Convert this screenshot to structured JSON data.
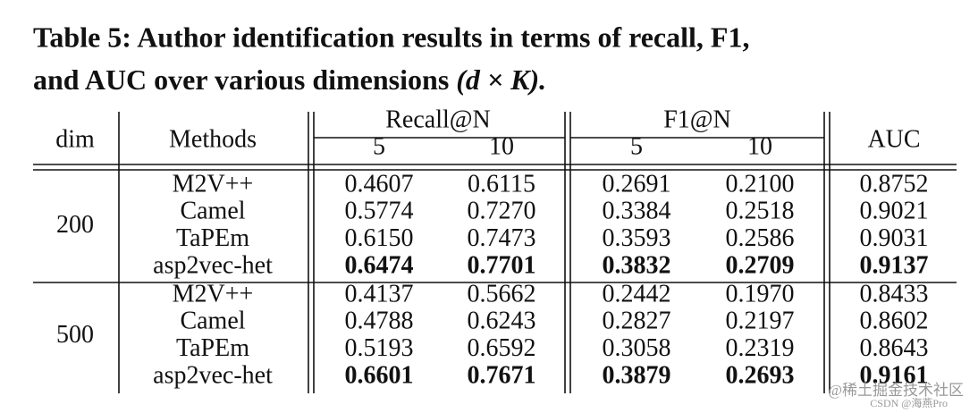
{
  "title": "Table 5: Author identification results in terms of recall, F1,",
  "title_line2": "and AUC over various dimensions",
  "title_math": "(d × K).",
  "table": {
    "header": {
      "dim": "dim",
      "methods": "Methods",
      "recall": "Recall@N",
      "recall_n": [
        "5",
        "10"
      ],
      "f1": "F1@N",
      "f1_n": [
        "5",
        "10"
      ],
      "auc": "AUC"
    },
    "groups": [
      {
        "dim": "200",
        "rows": [
          {
            "method": "M2V++",
            "values": [
              "0.4607",
              "0.6115",
              "0.2691",
              "0.2100",
              "0.8752"
            ],
            "bold": false
          },
          {
            "method": "Camel",
            "values": [
              "0.5774",
              "0.7270",
              "0.3384",
              "0.2518",
              "0.9021"
            ],
            "bold": false
          },
          {
            "method": "TaPEm",
            "values": [
              "0.6150",
              "0.7473",
              "0.3593",
              "0.2586",
              "0.9031"
            ],
            "bold": false
          },
          {
            "method": "asp2vec-het",
            "values": [
              "0.6474",
              "0.7701",
              "0.3832",
              "0.2709",
              "0.9137"
            ],
            "bold": true
          }
        ]
      },
      {
        "dim": "500",
        "rows": [
          {
            "method": "M2V++",
            "values": [
              "0.4137",
              "0.5662",
              "0.2442",
              "0.1970",
              "0.8433"
            ],
            "bold": false
          },
          {
            "method": "Camel",
            "values": [
              "0.4788",
              "0.6243",
              "0.2827",
              "0.2197",
              "0.8602"
            ],
            "bold": false
          },
          {
            "method": "TaPEm",
            "values": [
              "0.5193",
              "0.6592",
              "0.3058",
              "0.2319",
              "0.8643"
            ],
            "bold": false
          },
          {
            "method": "asp2vec-het",
            "values": [
              "0.6601",
              "0.7671",
              "0.3879",
              "0.2693",
              "0.9161"
            ],
            "bold": true
          }
        ]
      }
    ]
  },
  "watermark": "@稀土掘金技术社区",
  "watermark2": "CSDN @海燕Pro"
}
